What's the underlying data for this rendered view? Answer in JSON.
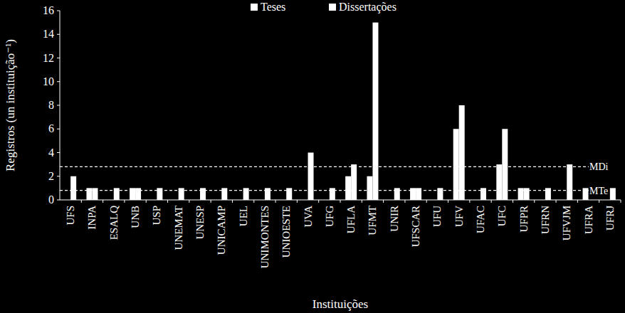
{
  "chart_data": {
    "type": "bar",
    "x_label": "Instituições",
    "y_label": "Registros (un instituição⁻¹)",
    "categories": [
      "UFS",
      "INPA",
      "ESALQ",
      "UNB",
      "USP",
      "UNEMAT",
      "UNESP",
      "UNICAMP",
      "UEL",
      "UNIMONTES",
      "UNIOESTE",
      "UVA",
      "UFG",
      "UFLA",
      "UFMT",
      "UNIR",
      "UFSCAR",
      "UFU",
      "UFV",
      "UFAC",
      "UFC",
      "UFPR",
      "UFRN",
      "UFVJM",
      "UFRA",
      "UFRJ"
    ],
    "series": [
      {
        "name": "Teses",
        "color": "#ffffff",
        "values": [
          0,
          1,
          0,
          1,
          0,
          0,
          0,
          0,
          0,
          0,
          0,
          0,
          0,
          2,
          2,
          0,
          1,
          0,
          6,
          0,
          3,
          1,
          0,
          0,
          1,
          0
        ]
      },
      {
        "name": "Dissertações",
        "color": "#ffffff",
        "values": [
          2,
          1,
          1,
          1,
          1,
          1,
          1,
          1,
          1,
          1,
          1,
          4,
          1,
          3,
          15,
          1,
          1,
          1,
          8,
          1,
          6,
          1,
          1,
          3,
          0,
          1
        ]
      }
    ],
    "reference_lines": [
      {
        "label": "MDi",
        "value": 2.8
      },
      {
        "label": "MTe",
        "value": 0.8
      }
    ],
    "ylim": [
      0,
      16
    ],
    "yticks": [
      0,
      2,
      4,
      6,
      8,
      10,
      12,
      14,
      16
    ],
    "grid": false,
    "legend": "top"
  }
}
